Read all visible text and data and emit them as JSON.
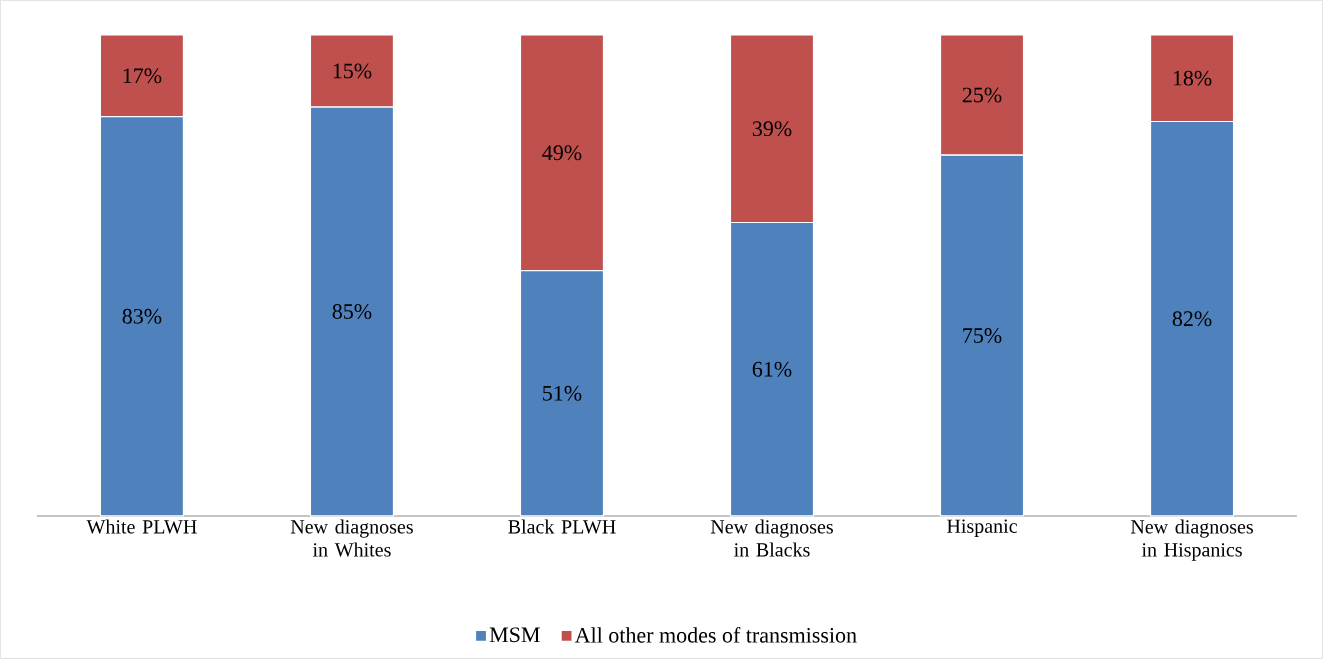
{
  "chart_data": {
    "type": "bar",
    "stacked": true,
    "categories": [
      "White PLWH",
      "New diagnoses in Whites",
      "Black PLWH",
      "New diagnoses in Blacks",
      "Hispanic",
      "New diagnoses in Hispanics"
    ],
    "series": [
      {
        "name": "MSM",
        "color": "#4f81bd",
        "values": [
          83,
          85,
          51,
          61,
          75,
          82
        ],
        "value_labels": [
          "83%",
          "85%",
          "51%",
          "61%",
          "75%",
          "82%"
        ]
      },
      {
        "name": "All other modes of transmission",
        "color": "#c0504d",
        "values": [
          17,
          15,
          49,
          39,
          25,
          18
        ],
        "value_labels": [
          "17%",
          "15%",
          "49%",
          "39%",
          "25%",
          "18%"
        ]
      }
    ],
    "legend": "bottom"
  }
}
